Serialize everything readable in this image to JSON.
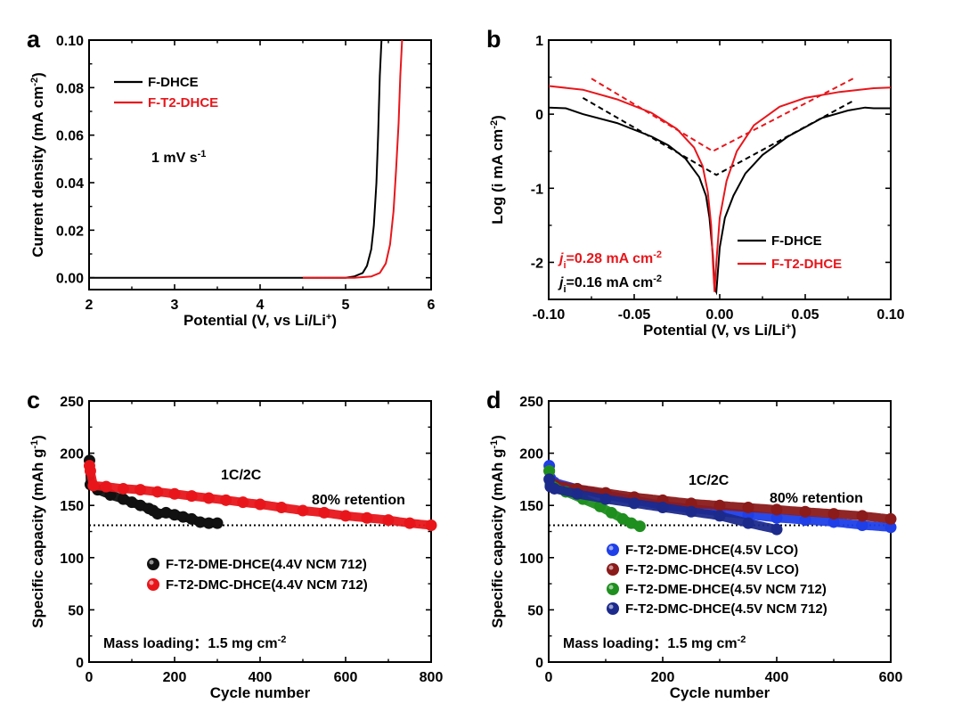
{
  "chart_data": [
    {
      "type": "line",
      "panel_label": "a",
      "xlabel": "Potential (V, vs Li/Li",
      "xlabel_sup": "+",
      "xlabel_end": ")",
      "ylabel": "Current density (mA cm",
      "ylabel_sup": "-2",
      "ylabel_end": ")",
      "xlim": [
        2,
        6
      ],
      "ylim": [
        -0.005,
        0.1
      ],
      "xticks": [
        2,
        3,
        4,
        5,
        6
      ],
      "xtick_labels": [
        "2",
        "3",
        "4",
        "5",
        "6"
      ],
      "yticks": [
        0,
        0.02,
        0.04,
        0.06,
        0.08,
        0.1
      ],
      "ytick_labels": [
        "0.00",
        "0.02",
        "0.04",
        "0.06",
        "0.08",
        "0.10"
      ],
      "annotation": "1 mV s",
      "annotation_sup": "-1",
      "legend_position": "top-left",
      "series": [
        {
          "name": "F-DHCE",
          "color": "#000000",
          "x": [
            2.0,
            4.0,
            5.0,
            5.1,
            5.2,
            5.25,
            5.3,
            5.33,
            5.36,
            5.38,
            5.4,
            5.42
          ],
          "y": [
            0,
            0,
            0,
            0.0005,
            0.002,
            0.005,
            0.012,
            0.022,
            0.04,
            0.06,
            0.085,
            0.1
          ]
        },
        {
          "name": "F-T2-DHCE",
          "color": "#e8161b",
          "x": [
            4.5,
            5.1,
            5.3,
            5.4,
            5.47,
            5.52,
            5.56,
            5.59,
            5.62,
            5.64,
            5.66
          ],
          "y": [
            0,
            0,
            0.0005,
            0.002,
            0.006,
            0.014,
            0.028,
            0.045,
            0.065,
            0.085,
            0.1
          ]
        }
      ]
    },
    {
      "type": "line",
      "panel_label": "b",
      "xlabel": "Potential (V, vs Li/Li",
      "xlabel_sup": "+",
      "xlabel_end": ")",
      "ylabel": "Log (i mA cm",
      "ylabel_sup": "-2",
      "ylabel_end": ")",
      "xlim": [
        -0.1,
        0.1
      ],
      "ylim": [
        -2.5,
        1
      ],
      "xticks": [
        -0.1,
        -0.05,
        0,
        0.05,
        0.1
      ],
      "xtick_labels": [
        "-0.10",
        "-0.05",
        "0.00",
        "0.05",
        "0.10"
      ],
      "yticks": [
        -2,
        -1,
        0,
        1
      ],
      "ytick_labels": [
        "-2",
        "-1",
        "0",
        "1"
      ],
      "legend_position": "bottom-right",
      "annotations": [
        {
          "symbol": "j",
          "sub": "i",
          "text": "=0.28 mA cm",
          "sup": "-2",
          "color": "#e8161b"
        },
        {
          "symbol": "j",
          "sub": "i",
          "text": "=0.16 mA cm",
          "sup": "-2",
          "color": "#000000"
        }
      ],
      "series": [
        {
          "name": "F-DHCE",
          "color": "#000000",
          "x": [
            -0.1,
            -0.09,
            -0.08,
            -0.06,
            -0.04,
            -0.03,
            -0.02,
            -0.012,
            -0.008,
            -0.006,
            -0.004,
            -0.003,
            -0.002,
            0.0,
            0.003,
            0.008,
            0.015,
            0.025,
            0.04,
            0.06,
            0.075,
            0.085,
            0.09,
            0.1
          ],
          "y": [
            0.09,
            0.08,
            0.0,
            -0.12,
            -0.3,
            -0.42,
            -0.6,
            -0.85,
            -1.1,
            -1.4,
            -1.9,
            -2.35,
            -2.4,
            -1.8,
            -1.4,
            -1.1,
            -0.8,
            -0.55,
            -0.3,
            -0.05,
            0.05,
            0.09,
            0.08,
            0.08
          ]
        },
        {
          "name": "F-T2-DHCE",
          "color": "#e8161b",
          "x": [
            -0.1,
            -0.08,
            -0.06,
            -0.04,
            -0.025,
            -0.015,
            -0.01,
            -0.007,
            -0.005,
            -0.004,
            -0.003,
            -0.002,
            0.0,
            0.004,
            0.01,
            0.02,
            0.035,
            0.05,
            0.07,
            0.09,
            0.1
          ],
          "y": [
            0.38,
            0.33,
            0.2,
            0.02,
            -0.2,
            -0.45,
            -0.7,
            -1.05,
            -1.5,
            -2.0,
            -2.4,
            -2.0,
            -1.4,
            -0.9,
            -0.5,
            -0.15,
            0.1,
            0.22,
            0.3,
            0.35,
            0.36
          ]
        }
      ],
      "tafel_lines": [
        {
          "color": "#000000",
          "x": [
            -0.08,
            -0.002,
            0.078
          ],
          "y": [
            0.22,
            -0.82,
            0.18
          ]
        },
        {
          "color": "#e8161b",
          "x": [
            -0.075,
            -0.004,
            0.078
          ],
          "y": [
            0.48,
            -0.5,
            0.48
          ]
        }
      ]
    },
    {
      "type": "scatter",
      "panel_label": "c",
      "xlabel": "Cycle number",
      "ylabel": "Specific capacity (mAh g",
      "ylabel_sup": "-1",
      "ylabel_end": ")",
      "xlim": [
        0,
        800
      ],
      "ylim": [
        0,
        250
      ],
      "xticks": [
        0,
        200,
        400,
        600,
        800
      ],
      "xtick_labels": [
        "0",
        "200",
        "400",
        "600",
        "800"
      ],
      "yticks": [
        0,
        50,
        100,
        150,
        200,
        250
      ],
      "ytick_labels": [
        "0",
        "50",
        "100",
        "150",
        "200",
        "250"
      ],
      "rate_label": "1C/2C",
      "retention_label": "80% retention",
      "retention_value": 131,
      "mass_loading": "Mass loading：1.5 mg cm",
      "mass_loading_sup": "-2",
      "legend_position": "lower-middle",
      "series": [
        {
          "name": "F-T2-DME-DHCE(4.4V NCM 712)",
          "color": "#111111",
          "x": [
            1,
            3,
            20,
            50,
            80,
            100,
            120,
            140,
            150,
            160,
            180,
            200,
            220,
            240,
            260,
            280,
            300
          ],
          "y": [
            193,
            170,
            165,
            160,
            156,
            153,
            150,
            147,
            145,
            142,
            143,
            141,
            139,
            137,
            134,
            133,
            133
          ]
        },
        {
          "name": "F-T2-DMC-DHCE(4.4V NCM 712)",
          "color": "#e8161b",
          "x": [
            1,
            3,
            10,
            40,
            80,
            120,
            160,
            200,
            240,
            280,
            320,
            360,
            400,
            450,
            500,
            550,
            600,
            650,
            700,
            750,
            800
          ],
          "y": [
            188,
            183,
            169,
            168,
            166,
            165,
            163,
            161,
            159,
            157,
            155,
            153,
            151,
            148,
            145,
            143,
            140,
            138,
            136,
            133,
            131
          ]
        }
      ]
    },
    {
      "type": "scatter",
      "panel_label": "d",
      "xlabel": "Cycle number",
      "ylabel": "Specific capacity (mAh g",
      "ylabel_sup": "-1",
      "ylabel_end": ")",
      "xlim": [
        0,
        600
      ],
      "ylim": [
        0,
        250
      ],
      "xticks": [
        0,
        200,
        400,
        600
      ],
      "xtick_labels": [
        "0",
        "200",
        "400",
        "600"
      ],
      "yticks": [
        0,
        50,
        100,
        150,
        200,
        250
      ],
      "ytick_labels": [
        "0",
        "50",
        "100",
        "150",
        "200",
        "250"
      ],
      "rate_label": "1C/2C",
      "retention_label": "80% retention",
      "retention_value": 131,
      "mass_loading": "Mass loading：1.5 mg cm",
      "mass_loading_sup": "-2",
      "legend_position": "lower-right",
      "series": [
        {
          "name": "F-T2-DME-DHCE(4.5V LCO)",
          "color": "#1f3fe8",
          "x": [
            1,
            3,
            10,
            50,
            100,
            150,
            200,
            250,
            300,
            350,
            400,
            450,
            500,
            550,
            600
          ],
          "y": [
            188,
            176,
            172,
            166,
            160,
            155,
            150,
            147,
            144,
            141,
            138,
            136,
            134,
            131,
            129
          ]
        },
        {
          "name": "F-T2-DMC-DHCE(4.5V LCO)",
          "color": "#8b1a1a",
          "x": [
            1,
            3,
            10,
            50,
            100,
            150,
            200,
            250,
            300,
            350,
            400,
            450,
            500,
            550,
            600
          ],
          "y": [
            183,
            172,
            170,
            166,
            162,
            158,
            155,
            152,
            150,
            148,
            146,
            144,
            142,
            140,
            137
          ]
        },
        {
          "name": "F-T2-DME-DHCE(4.5V NCM 712)",
          "color": "#1f8f1f",
          "x": [
            1,
            3,
            10,
            30,
            60,
            90,
            110,
            130,
            145,
            160
          ],
          "y": [
            183,
            170,
            167,
            163,
            156,
            149,
            143,
            137,
            133,
            130
          ]
        },
        {
          "name": "F-T2-DMC-DHCE(4.5V NCM 712)",
          "color": "#1c2a8c",
          "x": [
            1,
            3,
            10,
            50,
            100,
            150,
            200,
            250,
            300,
            350,
            400
          ],
          "y": [
            175,
            168,
            166,
            161,
            156,
            152,
            148,
            144,
            140,
            133,
            127
          ]
        }
      ]
    }
  ]
}
